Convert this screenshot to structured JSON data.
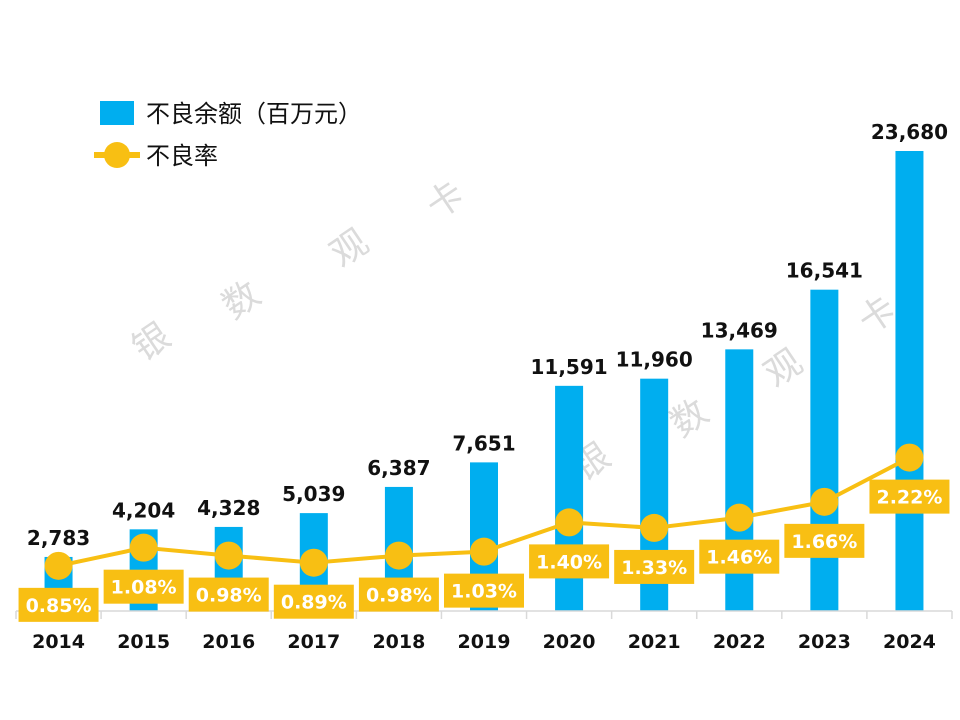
{
  "chart_data": {
    "type": "bar",
    "categories": [
      "2014",
      "2015",
      "2016",
      "2017",
      "2018",
      "2019",
      "2020",
      "2021",
      "2022",
      "2023",
      "2024"
    ],
    "series": [
      {
        "name": "不良余额（百万元）",
        "type": "bar",
        "values": [
          2783,
          4204,
          4328,
          5039,
          6387,
          7651,
          11591,
          11960,
          13469,
          16541,
          23680
        ],
        "labels": [
          "2,783",
          "4,204",
          "4,328",
          "5,039",
          "6,387",
          "7,651",
          "11,591",
          "11,960",
          "13,469",
          "16,541",
          "23,680"
        ],
        "color": "#00AEEF"
      },
      {
        "name": "不良率",
        "type": "line",
        "values": [
          0.85,
          1.08,
          0.98,
          0.89,
          0.98,
          1.03,
          1.4,
          1.33,
          1.46,
          1.66,
          2.22
        ],
        "labels": [
          "0.85%",
          "1.08%",
          "0.98%",
          "0.89%",
          "0.98%",
          "1.03%",
          "1.40%",
          "1.33%",
          "1.46%",
          "1.66%",
          "2.22%"
        ],
        "color": "#F8BF13"
      }
    ],
    "watermark": [
      "银",
      "数",
      "观",
      "卡"
    ]
  }
}
